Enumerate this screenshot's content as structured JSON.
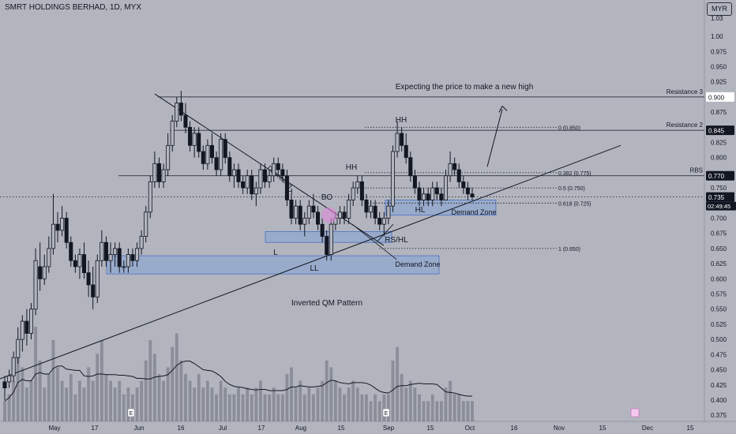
{
  "title": "SMRT HOLDINGS BERHAD, 1D, MYX",
  "currency": "MYR",
  "price_axis": {
    "ticks": [
      "1.03",
      "1.00",
      "0.975",
      "0.950",
      "0.925",
      "0.875",
      "0.825",
      "0.800",
      "0.750",
      "0.700",
      "0.675",
      "0.650",
      "0.625",
      "0.600",
      "0.575",
      "0.550",
      "0.525",
      "0.500",
      "0.475",
      "0.450",
      "0.425",
      "0.400",
      "0.375"
    ],
    "labels": {
      "resistance_3": "0.900",
      "resistance_2": "0.845",
      "rbs": "0.770",
      "last_price": "0.735",
      "countdown": "02:49:45"
    }
  },
  "time_axis": [
    "May",
    "17",
    "Jun",
    "16",
    "Jul",
    "17",
    "Aug",
    "15",
    "Sep",
    "15",
    "Oct",
    "16",
    "Nov",
    "15",
    "Dec",
    "15"
  ],
  "annotations": {
    "expect_high": "Expecting the price to make a new high",
    "resistance_3": "Resistance 3",
    "resistance_2": "Resistance 2",
    "rbs": "RBS",
    "fib_0": "0 (0.850)",
    "fib_382": "0.382 (0.775)",
    "fib_5": "0.5 (0.750)",
    "fib_618": "0.618 (0.725)",
    "fib_1": "1 (0.650)",
    "downtrend": "Downtrend",
    "demand_zone_1": "Demand Zone",
    "demand_zone_2": "Demand Zone",
    "inverted_qm": "Inverted QM Pattern",
    "hh_1": "HH",
    "hh_2": "HH",
    "hl": "HL",
    "h": "H",
    "l": "L",
    "ll": "LL",
    "bo": "BO",
    "rs_hl": "RS/HL",
    "e1": "E",
    "e2": "E"
  },
  "colors": {
    "background": "#b2b5be",
    "candles": "#131722",
    "zone_fill": "#7aa0dc",
    "zone_border": "#4a72c4",
    "volume": "#7e828c",
    "highlight": "#e08ad8"
  },
  "chart_data": {
    "type": "candlestick",
    "x_start": "2024-04-19",
    "y_range": [
      0.37,
      1.03
    ],
    "y_scale": "linear",
    "grid": false,
    "last_price": 0.735,
    "candles_ohlc": [
      [
        0.43,
        0.44,
        0.4,
        0.42
      ],
      [
        0.43,
        0.45,
        0.42,
        0.44
      ],
      [
        0.44,
        0.48,
        0.43,
        0.47
      ],
      [
        0.47,
        0.52,
        0.46,
        0.5
      ],
      [
        0.5,
        0.54,
        0.48,
        0.53
      ],
      [
        0.53,
        0.55,
        0.49,
        0.51
      ],
      [
        0.51,
        0.56,
        0.5,
        0.55
      ],
      [
        0.55,
        0.65,
        0.54,
        0.63
      ],
      [
        0.62,
        0.66,
        0.58,
        0.6
      ],
      [
        0.6,
        0.64,
        0.59,
        0.62
      ],
      [
        0.62,
        0.67,
        0.61,
        0.65
      ],
      [
        0.65,
        0.74,
        0.64,
        0.69
      ],
      [
        0.69,
        0.71,
        0.66,
        0.68
      ],
      [
        0.68,
        0.72,
        0.67,
        0.7
      ],
      [
        0.7,
        0.71,
        0.65,
        0.66
      ],
      [
        0.66,
        0.67,
        0.62,
        0.63
      ],
      [
        0.63,
        0.64,
        0.61,
        0.62
      ],
      [
        0.62,
        0.65,
        0.6,
        0.64
      ],
      [
        0.64,
        0.66,
        0.6,
        0.61
      ],
      [
        0.61,
        0.63,
        0.57,
        0.59
      ],
      [
        0.59,
        0.62,
        0.55,
        0.57
      ],
      [
        0.57,
        0.64,
        0.56,
        0.63
      ],
      [
        0.63,
        0.68,
        0.62,
        0.66
      ],
      [
        0.66,
        0.67,
        0.62,
        0.63
      ],
      [
        0.63,
        0.66,
        0.61,
        0.64
      ],
      [
        0.64,
        0.66,
        0.62,
        0.65
      ],
      [
        0.65,
        0.66,
        0.61,
        0.62
      ],
      [
        0.62,
        0.63,
        0.61,
        0.62
      ],
      [
        0.62,
        0.65,
        0.61,
        0.64
      ],
      [
        0.64,
        0.65,
        0.62,
        0.63
      ],
      [
        0.63,
        0.66,
        0.62,
        0.65
      ],
      [
        0.65,
        0.68,
        0.64,
        0.67
      ],
      [
        0.67,
        0.72,
        0.66,
        0.71
      ],
      [
        0.71,
        0.77,
        0.7,
        0.76
      ],
      [
        0.76,
        0.81,
        0.75,
        0.79
      ],
      [
        0.79,
        0.8,
        0.75,
        0.76
      ],
      [
        0.76,
        0.79,
        0.75,
        0.78
      ],
      [
        0.78,
        0.84,
        0.77,
        0.82
      ],
      [
        0.82,
        0.87,
        0.81,
        0.86
      ],
      [
        0.86,
        0.9,
        0.85,
        0.89
      ],
      [
        0.89,
        0.91,
        0.86,
        0.87
      ],
      [
        0.87,
        0.89,
        0.84,
        0.85
      ],
      [
        0.85,
        0.86,
        0.81,
        0.82
      ],
      [
        0.82,
        0.85,
        0.8,
        0.84
      ],
      [
        0.84,
        0.85,
        0.8,
        0.81
      ],
      [
        0.81,
        0.82,
        0.78,
        0.79
      ],
      [
        0.79,
        0.83,
        0.78,
        0.82
      ],
      [
        0.82,
        0.84,
        0.79,
        0.8
      ],
      [
        0.8,
        0.81,
        0.77,
        0.78
      ],
      [
        0.78,
        0.84,
        0.77,
        0.83
      ],
      [
        0.83,
        0.84,
        0.79,
        0.8
      ],
      [
        0.8,
        0.81,
        0.76,
        0.77
      ],
      [
        0.77,
        0.79,
        0.75,
        0.78
      ],
      [
        0.78,
        0.79,
        0.75,
        0.76
      ],
      [
        0.76,
        0.77,
        0.74,
        0.75
      ],
      [
        0.75,
        0.78,
        0.74,
        0.77
      ],
      [
        0.77,
        0.78,
        0.73,
        0.74
      ],
      [
        0.74,
        0.76,
        0.72,
        0.75
      ],
      [
        0.75,
        0.79,
        0.74,
        0.78
      ],
      [
        0.78,
        0.79,
        0.75,
        0.76
      ],
      [
        0.76,
        0.78,
        0.75,
        0.77
      ],
      [
        0.77,
        0.8,
        0.76,
        0.79
      ],
      [
        0.79,
        0.8,
        0.77,
        0.78
      ],
      [
        0.78,
        0.79,
        0.76,
        0.77
      ],
      [
        0.77,
        0.78,
        0.72,
        0.73
      ],
      [
        0.73,
        0.74,
        0.69,
        0.7
      ],
      [
        0.7,
        0.73,
        0.69,
        0.72
      ],
      [
        0.72,
        0.73,
        0.68,
        0.69
      ],
      [
        0.69,
        0.71,
        0.67,
        0.7
      ],
      [
        0.7,
        0.73,
        0.69,
        0.72
      ],
      [
        0.72,
        0.74,
        0.7,
        0.71
      ],
      [
        0.71,
        0.72,
        0.68,
        0.69
      ],
      [
        0.69,
        0.7,
        0.66,
        0.67
      ],
      [
        0.67,
        0.68,
        0.63,
        0.64
      ],
      [
        0.64,
        0.7,
        0.63,
        0.69
      ],
      [
        0.69,
        0.71,
        0.68,
        0.7
      ],
      [
        0.7,
        0.72,
        0.69,
        0.71
      ],
      [
        0.71,
        0.72,
        0.69,
        0.7
      ],
      [
        0.7,
        0.74,
        0.69,
        0.73
      ],
      [
        0.73,
        0.76,
        0.72,
        0.75
      ],
      [
        0.75,
        0.77,
        0.74,
        0.76
      ],
      [
        0.76,
        0.77,
        0.72,
        0.73
      ],
      [
        0.73,
        0.74,
        0.7,
        0.71
      ],
      [
        0.71,
        0.73,
        0.7,
        0.72
      ],
      [
        0.72,
        0.73,
        0.69,
        0.7
      ],
      [
        0.7,
        0.71,
        0.68,
        0.69
      ],
      [
        0.69,
        0.71,
        0.67,
        0.7
      ],
      [
        0.7,
        0.73,
        0.69,
        0.72
      ],
      [
        0.72,
        0.82,
        0.71,
        0.81
      ],
      [
        0.81,
        0.86,
        0.8,
        0.84
      ],
      [
        0.84,
        0.85,
        0.81,
        0.82
      ],
      [
        0.82,
        0.84,
        0.79,
        0.8
      ],
      [
        0.8,
        0.81,
        0.76,
        0.77
      ],
      [
        0.77,
        0.78,
        0.74,
        0.75
      ],
      [
        0.75,
        0.76,
        0.72,
        0.73
      ],
      [
        0.73,
        0.75,
        0.72,
        0.74
      ],
      [
        0.74,
        0.75,
        0.72,
        0.73
      ],
      [
        0.73,
        0.76,
        0.72,
        0.75
      ],
      [
        0.75,
        0.76,
        0.73,
        0.74
      ],
      [
        0.74,
        0.75,
        0.72,
        0.73
      ],
      [
        0.73,
        0.78,
        0.73,
        0.77
      ],
      [
        0.77,
        0.81,
        0.76,
        0.79
      ],
      [
        0.79,
        0.8,
        0.77,
        0.78
      ],
      [
        0.78,
        0.79,
        0.75,
        0.76
      ],
      [
        0.76,
        0.77,
        0.74,
        0.75
      ],
      [
        0.75,
        0.76,
        0.73,
        0.74
      ],
      [
        0.74,
        0.75,
        0.73,
        0.735
      ]
    ],
    "volume": [
      3,
      4,
      6,
      10,
      8,
      5,
      6,
      14,
      9,
      5,
      7,
      12,
      8,
      6,
      5,
      7,
      4,
      6,
      5,
      8,
      6,
      10,
      12,
      7,
      6,
      5,
      6,
      4,
      5,
      4,
      5,
      6,
      9,
      12,
      10,
      7,
      6,
      8,
      11,
      13,
      9,
      7,
      6,
      5,
      7,
      5,
      6,
      5,
      4,
      6,
      5,
      4,
      4,
      5,
      4,
      5,
      4,
      5,
      6,
      4,
      4,
      5,
      4,
      4,
      7,
      8,
      5,
      6,
      4,
      5,
      4,
      5,
      6,
      9,
      8,
      6,
      5,
      4,
      5,
      6,
      5,
      4,
      4,
      3,
      4,
      3,
      4,
      4,
      9,
      11,
      7,
      5,
      6,
      5,
      4,
      3,
      3,
      4,
      3,
      3,
      5,
      6,
      4,
      4,
      3,
      3,
      3
    ],
    "levels": [
      {
        "name": "Resistance 3",
        "value": 0.9
      },
      {
        "name": "Resistance 2",
        "value": 0.845
      },
      {
        "name": "RBS",
        "value": 0.77
      }
    ],
    "fib_levels": [
      {
        "ratio": 0,
        "value": 0.85
      },
      {
        "ratio": 0.382,
        "value": 0.775
      },
      {
        "ratio": 0.5,
        "value": 0.75
      },
      {
        "ratio": 0.618,
        "value": 0.725
      },
      {
        "ratio": 1,
        "value": 0.65
      }
    ],
    "demand_zones": [
      {
        "name": "Demand Zone",
        "from": 0.608,
        "to": 0.638
      },
      {
        "name": "Demand Zone",
        "from": 0.705,
        "to": 0.73
      },
      {
        "name": "",
        "from": 0.66,
        "to": 0.678
      }
    ]
  }
}
